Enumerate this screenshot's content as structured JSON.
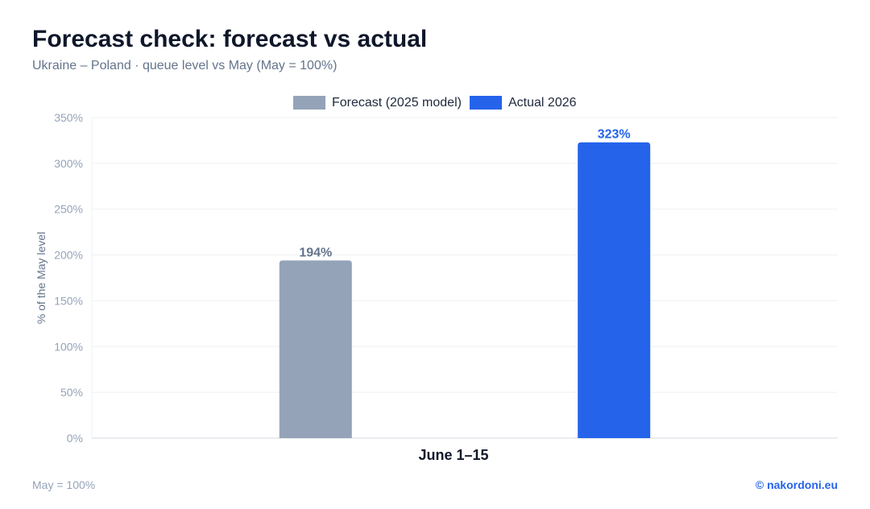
{
  "header": {
    "title": "Forecast check: forecast vs actual",
    "subtitle": "Ukraine – Poland · queue level vs May (May = 100%)"
  },
  "footer": {
    "note": "May = 100%",
    "credit": "© nakordoni.eu"
  },
  "colors": {
    "forecast": "#94a3b8",
    "actual": "#2563eb"
  },
  "chart_data": {
    "type": "bar",
    "categories": [
      "June 1–15"
    ],
    "series": [
      {
        "name": "Forecast (2025 model)",
        "values": [
          194
        ],
        "labels": [
          "194%"
        ]
      },
      {
        "name": "Actual 2026",
        "values": [
          323
        ],
        "labels": [
          "323%"
        ]
      }
    ],
    "ylabel": "% of the May level",
    "ylim": [
      0,
      350
    ],
    "yticks": [
      0,
      50,
      100,
      150,
      200,
      250,
      300,
      350
    ],
    "ytick_labels": [
      "0%",
      "50%",
      "100%",
      "150%",
      "200%",
      "250%",
      "300%",
      "350%"
    ],
    "legend_position": "top-center",
    "grid": true
  }
}
